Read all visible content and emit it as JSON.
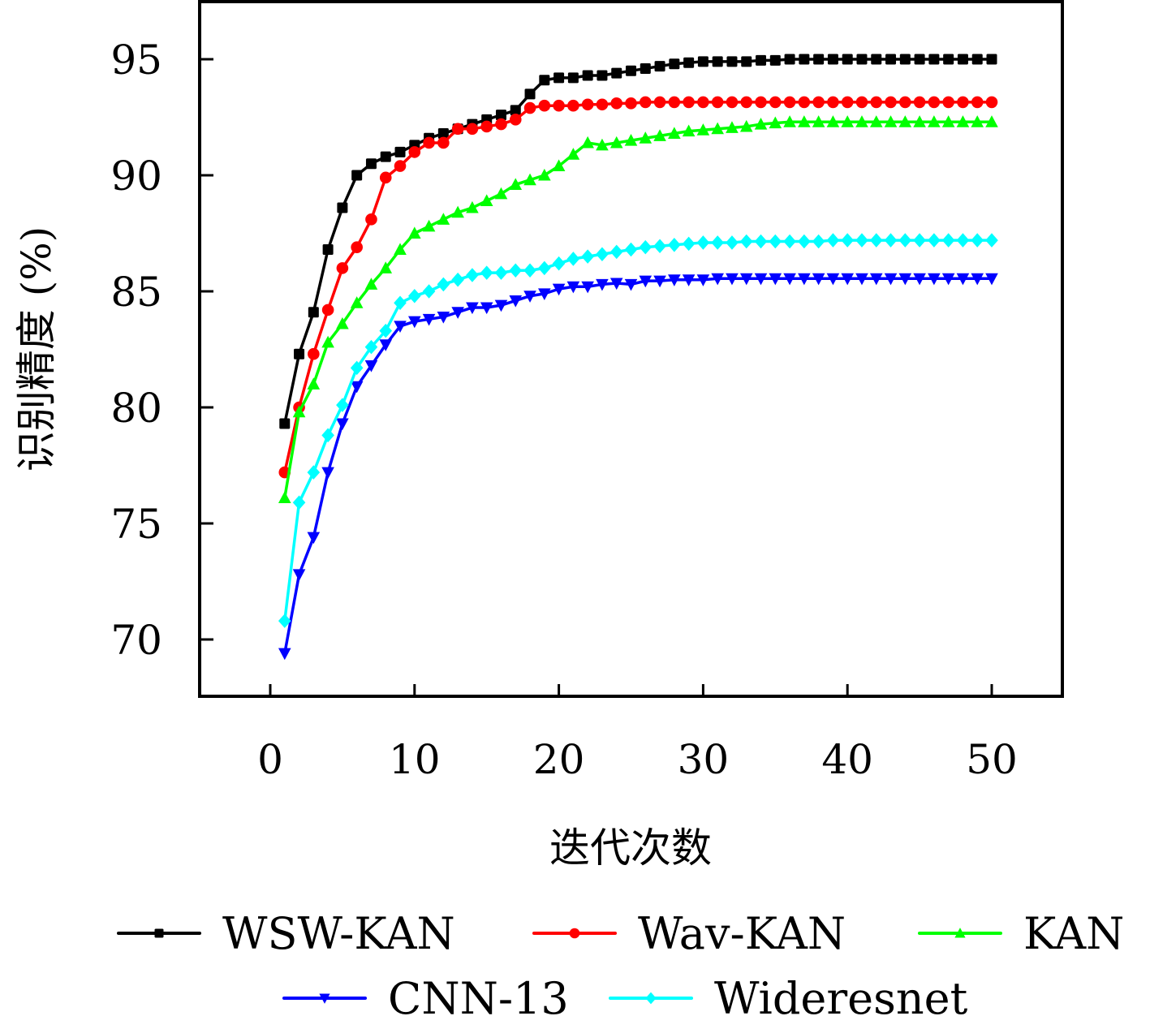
{
  "chart_data": {
    "type": "line",
    "title": "",
    "xlabel": "迭代次数",
    "ylabel": "识别精度 (%)",
    "xlim": [
      -5,
      55
    ],
    "ylim": [
      67.5,
      97.5
    ],
    "xticks": [
      0,
      10,
      20,
      30,
      40,
      50
    ],
    "yticks": [
      70,
      75,
      80,
      85,
      90,
      95
    ],
    "xtick_labels": [
      "0",
      "10",
      "20",
      "30",
      "40",
      "50"
    ],
    "ytick_labels": [
      "70",
      "75",
      "80",
      "85",
      "90",
      "95"
    ],
    "grid": false,
    "legend_position": "bottom",
    "x": [
      1,
      2,
      3,
      4,
      5,
      6,
      7,
      8,
      9,
      10,
      11,
      12,
      13,
      14,
      15,
      16,
      17,
      18,
      19,
      20,
      21,
      22,
      23,
      24,
      25,
      26,
      27,
      28,
      29,
      30,
      31,
      32,
      33,
      34,
      35,
      36,
      37,
      38,
      39,
      40,
      41,
      42,
      43,
      44,
      45,
      46,
      47,
      48,
      49,
      50
    ],
    "series": [
      {
        "name": "WSW-KAN",
        "color": "#000000",
        "marker": "square",
        "values": [
          79.3,
          82.3,
          84.1,
          86.8,
          88.6,
          90.0,
          90.5,
          90.8,
          91.0,
          91.3,
          91.6,
          91.8,
          92.0,
          92.2,
          92.4,
          92.6,
          92.8,
          93.5,
          94.1,
          94.2,
          94.2,
          94.3,
          94.3,
          94.4,
          94.5,
          94.6,
          94.7,
          94.8,
          94.85,
          94.9,
          94.9,
          94.9,
          94.9,
          94.95,
          94.95,
          95.0,
          95.0,
          95.0,
          95.0,
          95.0,
          95.0,
          95.0,
          95.0,
          95.0,
          95.0,
          95.0,
          95.0,
          95.0,
          95.0,
          95.0
        ]
      },
      {
        "name": "Wav-KAN",
        "color": "#ff0000",
        "marker": "circle",
        "values": [
          77.2,
          80.0,
          82.3,
          84.2,
          86.0,
          86.9,
          88.1,
          89.9,
          90.4,
          91.0,
          91.4,
          91.4,
          92.0,
          92.0,
          92.1,
          92.2,
          92.4,
          92.9,
          93.0,
          93.0,
          93.0,
          93.05,
          93.05,
          93.1,
          93.1,
          93.15,
          93.15,
          93.15,
          93.15,
          93.15,
          93.15,
          93.15,
          93.15,
          93.15,
          93.15,
          93.15,
          93.15,
          93.15,
          93.15,
          93.15,
          93.15,
          93.15,
          93.15,
          93.15,
          93.15,
          93.15,
          93.15,
          93.15,
          93.15,
          93.15
        ]
      },
      {
        "name": "KAN",
        "color": "#00ff00",
        "marker": "triangle-up",
        "values": [
          76.1,
          79.8,
          81.0,
          82.8,
          83.6,
          84.5,
          85.3,
          86.0,
          86.8,
          87.5,
          87.8,
          88.1,
          88.4,
          88.6,
          88.9,
          89.2,
          89.6,
          89.8,
          90.0,
          90.4,
          90.9,
          91.4,
          91.3,
          91.4,
          91.5,
          91.6,
          91.7,
          91.8,
          91.9,
          91.95,
          92.0,
          92.05,
          92.1,
          92.2,
          92.25,
          92.3,
          92.3,
          92.3,
          92.3,
          92.3,
          92.3,
          92.3,
          92.3,
          92.3,
          92.3,
          92.3,
          92.3,
          92.3,
          92.3,
          92.3
        ]
      },
      {
        "name": "CNN-13",
        "color": "#0000ff",
        "marker": "triangle-down",
        "values": [
          69.4,
          72.8,
          74.4,
          77.2,
          79.3,
          80.9,
          81.8,
          82.7,
          83.5,
          83.7,
          83.8,
          83.9,
          84.1,
          84.3,
          84.3,
          84.4,
          84.6,
          84.8,
          84.9,
          85.1,
          85.2,
          85.2,
          85.3,
          85.35,
          85.3,
          85.45,
          85.45,
          85.5,
          85.5,
          85.5,
          85.55,
          85.55,
          85.55,
          85.55,
          85.55,
          85.55,
          85.55,
          85.55,
          85.55,
          85.55,
          85.55,
          85.55,
          85.55,
          85.55,
          85.55,
          85.55,
          85.55,
          85.55,
          85.55,
          85.55
        ]
      },
      {
        "name": "Wideresnet",
        "color": "#00ffff",
        "marker": "diamond",
        "values": [
          70.8,
          75.9,
          77.2,
          78.8,
          80.1,
          81.7,
          82.6,
          83.3,
          84.5,
          84.8,
          85.0,
          85.3,
          85.5,
          85.7,
          85.8,
          85.8,
          85.9,
          85.9,
          86.0,
          86.2,
          86.4,
          86.5,
          86.6,
          86.7,
          86.8,
          86.9,
          86.95,
          87.0,
          87.05,
          87.1,
          87.1,
          87.1,
          87.15,
          87.15,
          87.15,
          87.15,
          87.15,
          87.15,
          87.2,
          87.2,
          87.2,
          87.2,
          87.2,
          87.2,
          87.2,
          87.2,
          87.2,
          87.2,
          87.2,
          87.2
        ]
      }
    ]
  }
}
